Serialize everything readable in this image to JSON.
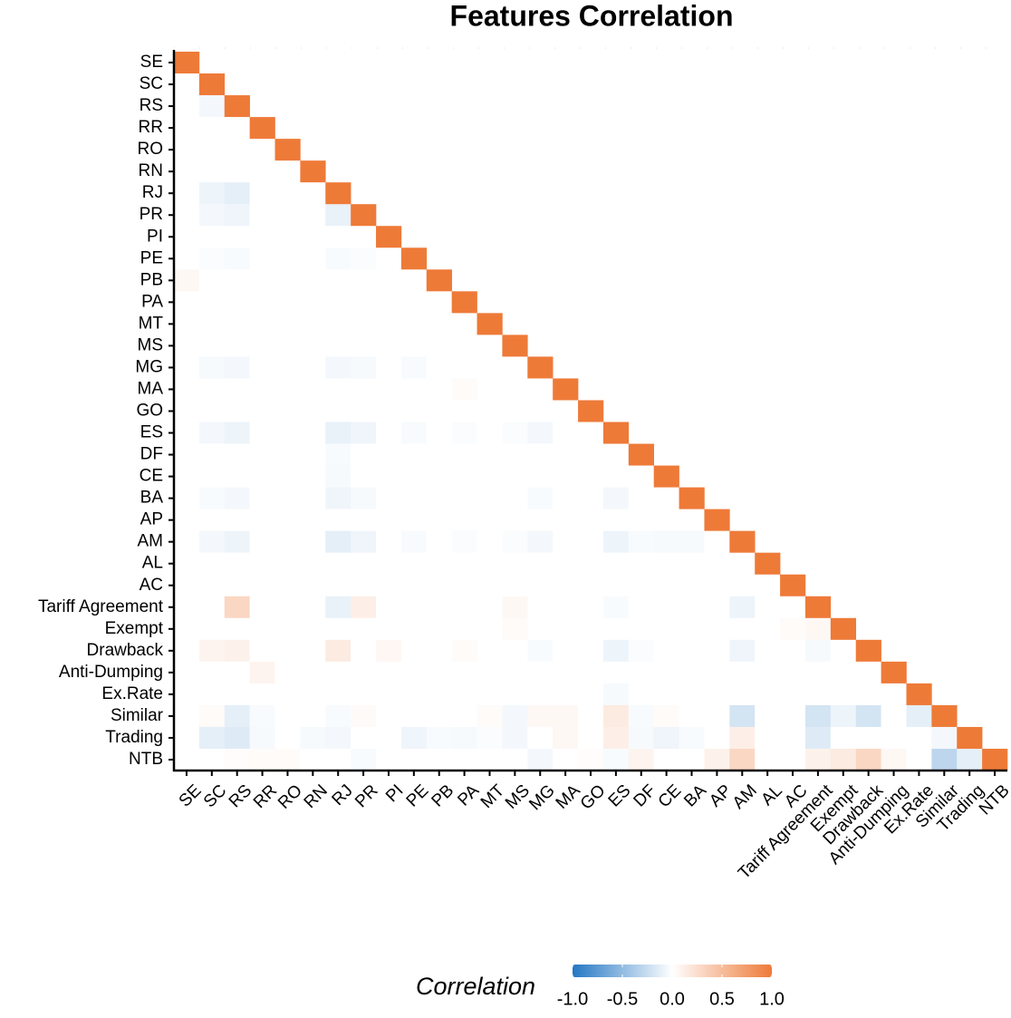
{
  "chart_data": {
    "type": "heatmap",
    "title": "Features Correlation",
    "categories": [
      "SE",
      "SC",
      "RS",
      "RR",
      "RO",
      "RN",
      "RJ",
      "PR",
      "PI",
      "PE",
      "PB",
      "PA",
      "MT",
      "MS",
      "MG",
      "MA",
      "GO",
      "ES",
      "DF",
      "CE",
      "BA",
      "AP",
      "AM",
      "AL",
      "AC",
      "Tariff Agreement",
      "Exempt",
      "Drawback",
      "Anti-Dumping",
      "Ex.Rate",
      "Similar",
      "Trading",
      "NTB"
    ],
    "values": [
      [
        1
      ],
      [
        0,
        1
      ],
      [
        0,
        -0.05,
        1
      ],
      [
        0,
        0,
        0,
        1
      ],
      [
        0,
        0,
        0,
        0,
        1
      ],
      [
        0,
        0,
        0,
        0,
        0,
        1
      ],
      [
        0,
        -0.08,
        -0.12,
        0,
        0,
        0,
        1
      ],
      [
        0,
        -0.05,
        -0.07,
        0,
        0,
        0,
        -0.1,
        1
      ],
      [
        0,
        0,
        0,
        0,
        0,
        0,
        0,
        0,
        1
      ],
      [
        0,
        -0.02,
        -0.03,
        0,
        0,
        0,
        -0.03,
        -0.02,
        0,
        1
      ],
      [
        0.05,
        0,
        0,
        0,
        0,
        0,
        0,
        0,
        0,
        0,
        1
      ],
      [
        0,
        0,
        0,
        0,
        0,
        0,
        0,
        0,
        0,
        0,
        0,
        1
      ],
      [
        0,
        0,
        0,
        0,
        0,
        0,
        0,
        0,
        0,
        0,
        0,
        0,
        1
      ],
      [
        0,
        0,
        0,
        0,
        0,
        0,
        0,
        0,
        0,
        0,
        0,
        0,
        0,
        1
      ],
      [
        0,
        -0.04,
        -0.05,
        0,
        0,
        0,
        -0.05,
        -0.04,
        0,
        -0.03,
        0,
        0,
        0,
        0,
        1
      ],
      [
        0,
        0,
        0,
        0,
        0,
        0,
        0,
        0,
        0,
        0,
        0,
        0.03,
        0,
        0,
        0,
        1
      ],
      [
        0,
        0,
        0,
        0,
        0,
        0,
        0,
        0,
        0,
        0,
        0,
        0,
        0,
        0,
        0,
        0,
        1
      ],
      [
        0,
        -0.05,
        -0.08,
        0,
        0,
        0,
        -0.1,
        -0.07,
        0,
        -0.03,
        0,
        -0.02,
        0,
        -0.02,
        -0.05,
        0,
        0,
        1
      ],
      [
        0,
        0,
        0,
        0,
        0,
        0,
        -0.03,
        0,
        0,
        0,
        0,
        0,
        0,
        0,
        0,
        0,
        0,
        0,
        1
      ],
      [
        0,
        0,
        0,
        0,
        0,
        0,
        -0.04,
        0,
        0,
        0,
        0,
        0,
        0,
        0,
        0,
        0,
        0,
        0,
        0,
        1
      ],
      [
        0,
        -0.03,
        -0.05,
        0,
        0,
        0,
        -0.07,
        -0.04,
        0,
        0,
        0,
        0,
        0,
        0,
        -0.03,
        0,
        0,
        -0.05,
        0,
        0,
        1
      ],
      [
        0,
        0,
        0,
        0,
        0,
        0,
        0,
        0,
        0,
        0,
        0,
        0,
        0,
        0,
        0,
        0,
        0,
        0,
        0,
        0,
        0,
        1
      ],
      [
        0,
        -0.05,
        -0.08,
        0,
        0,
        0,
        -0.12,
        -0.07,
        0,
        -0.03,
        0,
        -0.02,
        0,
        -0.02,
        -0.05,
        0,
        0,
        -0.08,
        -0.03,
        -0.04,
        -0.04,
        0,
        1
      ],
      [
        0,
        0,
        0,
        0,
        0,
        0,
        0,
        0,
        0,
        0,
        0,
        0,
        0,
        0,
        0,
        0,
        0,
        0,
        0,
        0,
        0,
        0,
        0,
        1
      ],
      [
        0,
        0,
        0,
        0,
        0,
        0,
        0,
        0,
        0,
        0,
        0,
        0,
        0,
        0,
        0,
        0,
        0,
        0,
        0,
        0,
        0,
        0,
        0,
        0,
        1
      ],
      [
        0,
        0,
        0.3,
        0,
        0,
        0,
        -0.1,
        0.12,
        0,
        0,
        0,
        0,
        0,
        0.05,
        0,
        0,
        0,
        -0.03,
        0,
        0,
        0,
        0,
        -0.08,
        0,
        0,
        1
      ],
      [
        0,
        0,
        0,
        0,
        0,
        0,
        0,
        0,
        0,
        0,
        0,
        0,
        0,
        0.03,
        0,
        0,
        0,
        0,
        0,
        0,
        0,
        0,
        0,
        0,
        0.03,
        0.05,
        1
      ],
      [
        0,
        0.08,
        0.1,
        0,
        0,
        0,
        0.15,
        0,
        0.06,
        0,
        0,
        0.03,
        0,
        0,
        -0.03,
        0,
        0,
        -0.08,
        -0.02,
        0,
        0,
        0,
        -0.07,
        0,
        0,
        -0.04,
        0,
        1
      ],
      [
        0,
        0,
        0,
        0.08,
        0,
        0,
        0,
        0,
        0,
        0,
        0,
        0,
        0,
        0,
        0,
        0,
        0,
        0,
        0,
        0,
        0,
        0,
        0,
        0,
        0,
        0,
        0,
        0,
        1
      ],
      [
        0,
        0,
        0,
        0,
        0,
        0,
        0,
        0,
        0,
        0,
        0,
        0,
        0,
        0,
        0,
        0,
        0,
        -0.04,
        0,
        0,
        0,
        0,
        0,
        0,
        0,
        0,
        0,
        0,
        0,
        1
      ],
      [
        0,
        0.03,
        -0.12,
        -0.03,
        0,
        0,
        -0.03,
        0.04,
        0,
        0,
        0,
        0,
        0.03,
        -0.05,
        0.05,
        0.05,
        0,
        0.15,
        -0.03,
        0.03,
        0,
        0,
        -0.2,
        0,
        0,
        -0.2,
        -0.08,
        -0.2,
        0,
        -0.12,
        1
      ],
      [
        0,
        -0.12,
        -0.15,
        -0.04,
        0,
        -0.04,
        -0.05,
        0,
        0,
        -0.07,
        -0.03,
        -0.04,
        -0.02,
        -0.05,
        0,
        0.05,
        0,
        0.12,
        -0.04,
        -0.07,
        -0.03,
        0,
        0.12,
        0,
        0,
        -0.15,
        0,
        0,
        0,
        0,
        -0.05,
        1
      ],
      [
        0,
        0,
        0.02,
        0.03,
        0.03,
        0,
        0,
        -0.03,
        0,
        0,
        0,
        0,
        0,
        0,
        -0.05,
        0,
        0.02,
        -0.03,
        0.08,
        0,
        0,
        0.1,
        0.3,
        0,
        0,
        0.1,
        0.15,
        0.3,
        0.05,
        0,
        -0.3,
        -0.12,
        1
      ]
    ],
    "scale_colors": [
      "#2477c4",
      "#ffffff",
      "#ee7a38"
    ],
    "legend_title": "Correlation",
    "legend_lim": [
      -1,
      1
    ],
    "legend_ticks": [
      {
        "value": -1,
        "label": "-1.0"
      },
      {
        "value": -0.5,
        "label": "-0.5"
      },
      {
        "value": 0,
        "label": "0.0"
      },
      {
        "value": 0.5,
        "label": "0.5"
      },
      {
        "value": 1,
        "label": "1.0"
      }
    ]
  }
}
